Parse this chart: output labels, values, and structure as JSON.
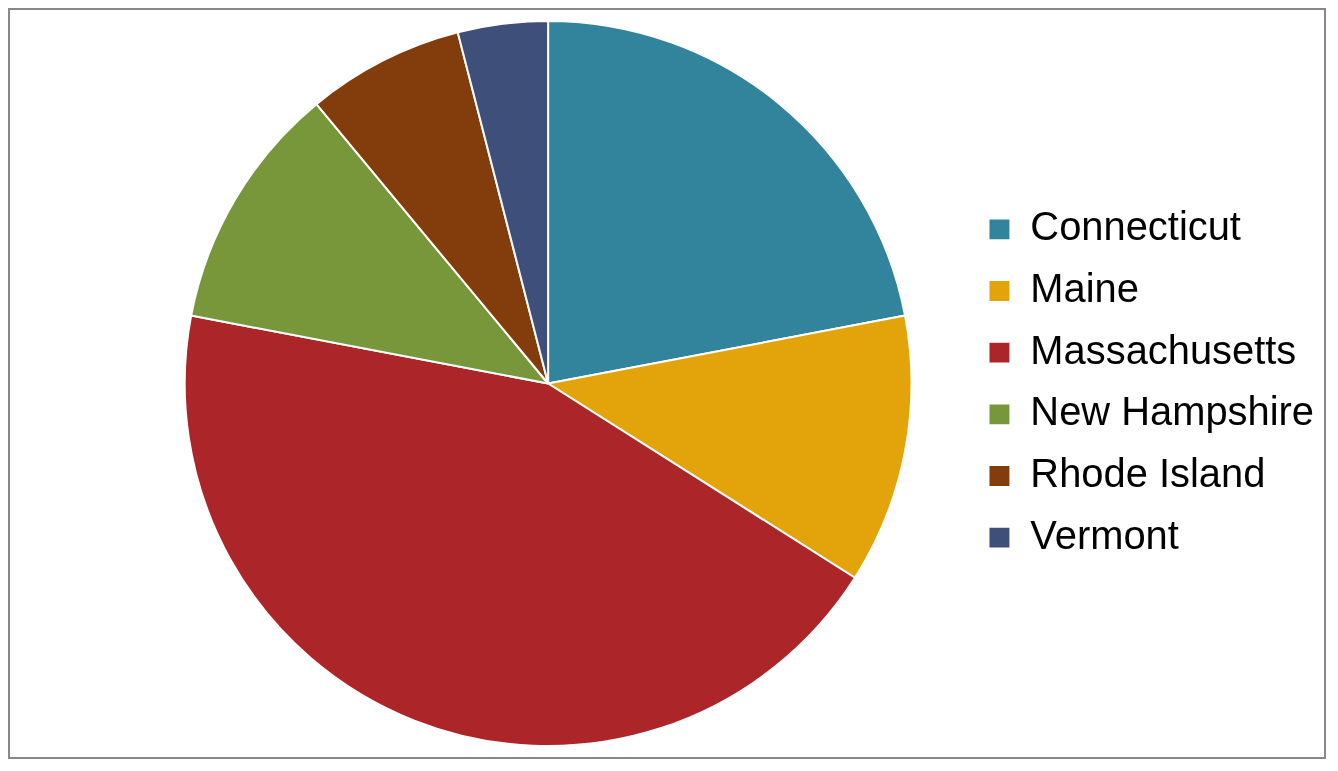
{
  "chart_data": {
    "type": "pie",
    "categories": [
      "Connecticut",
      "Maine",
      "Massachusetts",
      "New Hampshire",
      "Rhode Island",
      "Vermont"
    ],
    "values": [
      22,
      12,
      44,
      11,
      7,
      4
    ],
    "colors": [
      "#31849b",
      "#e2a40a",
      "#ac2629",
      "#77973a",
      "#833c0b",
      "#3e4f7a"
    ],
    "legend": "right"
  }
}
